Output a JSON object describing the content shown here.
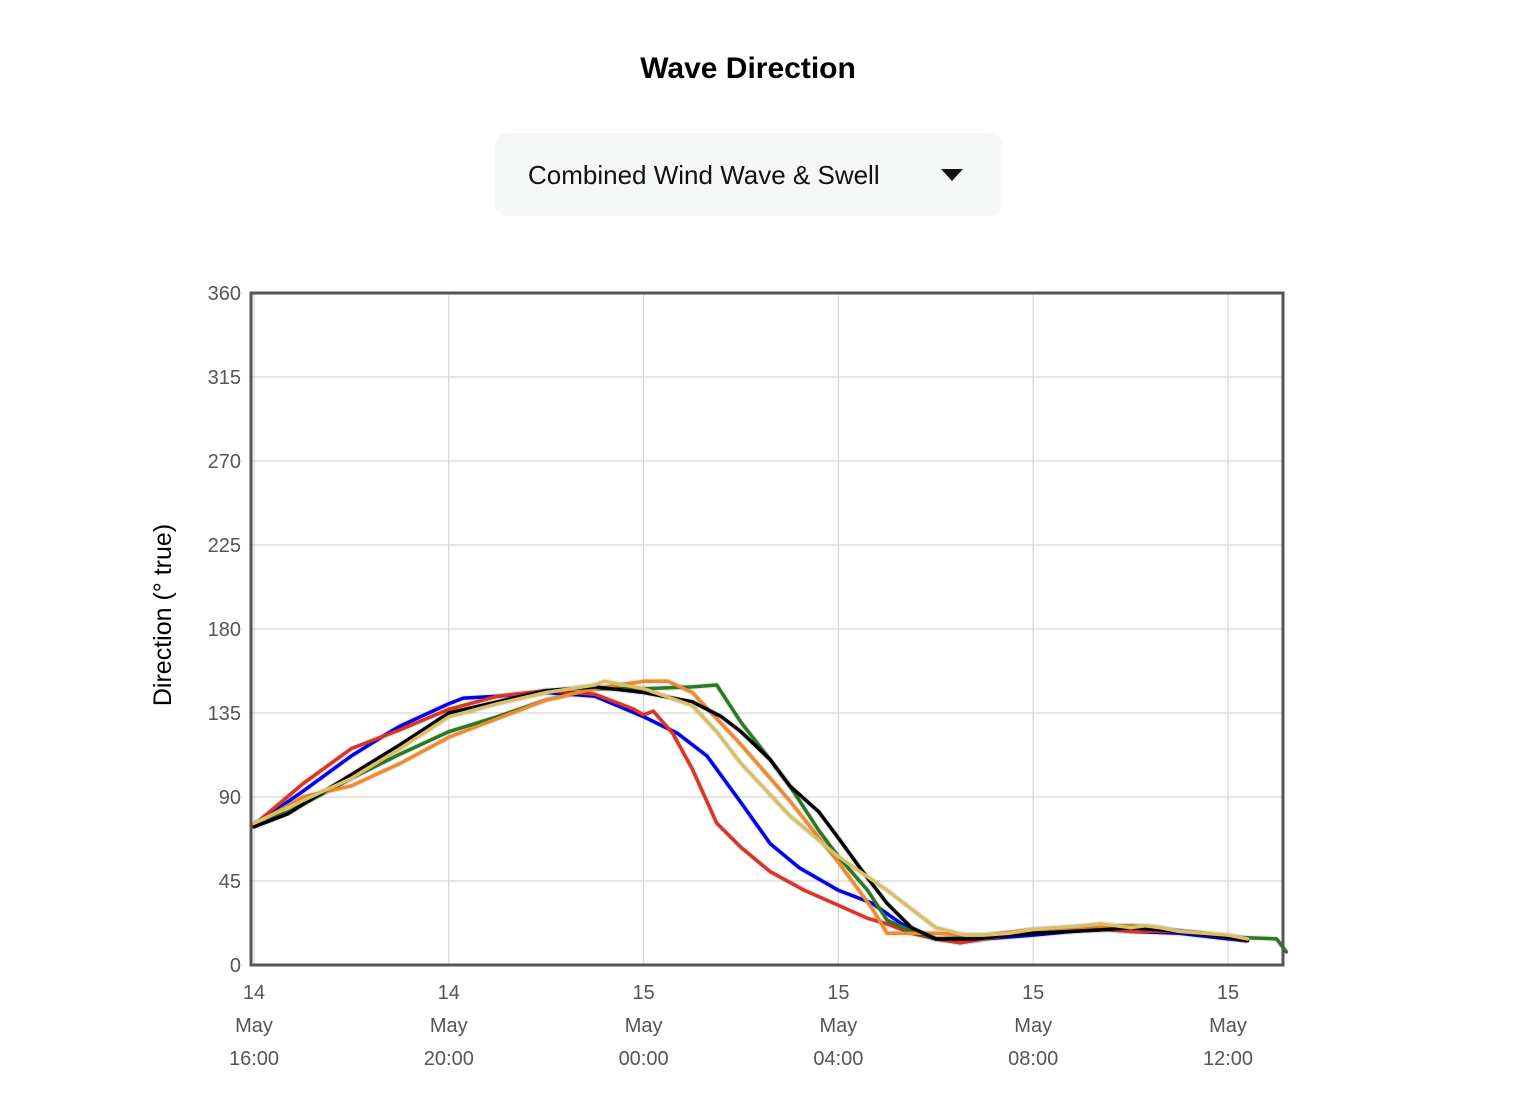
{
  "title": "Wave Direction",
  "selector": {
    "selected": "Combined Wind Wave & Swell"
  },
  "chart_data": {
    "type": "line",
    "ylabel": "Direction (° true)",
    "xlabel": "",
    "ylim": [
      0,
      360
    ],
    "yticks": [
      0,
      45,
      90,
      135,
      180,
      225,
      270,
      315,
      360
    ],
    "xlim": [
      0,
      21.2
    ],
    "xticks": [
      {
        "x": 0,
        "lines": [
          "14",
          "May",
          "16:00"
        ]
      },
      {
        "x": 4,
        "lines": [
          "14",
          "May",
          "20:00"
        ]
      },
      {
        "x": 8,
        "lines": [
          "15",
          "May",
          "00:00"
        ]
      },
      {
        "x": 12,
        "lines": [
          "15",
          "May",
          "04:00"
        ]
      },
      {
        "x": 16,
        "lines": [
          "15",
          "May",
          "08:00"
        ]
      },
      {
        "x": 20,
        "lines": [
          "15",
          "May",
          "12:00"
        ]
      }
    ],
    "x_unit_note": "hours after 14 May 16:00",
    "grid": true,
    "series": [
      {
        "color": "#0000ee",
        "points": [
          [
            0,
            75
          ],
          [
            1,
            93
          ],
          [
            2,
            112
          ],
          [
            2.8,
            125
          ],
          [
            3,
            128
          ],
          [
            4,
            140
          ],
          [
            4.3,
            143
          ],
          [
            5,
            144
          ],
          [
            6,
            146
          ],
          [
            7,
            144
          ],
          [
            8,
            133
          ],
          [
            8.7,
            124
          ],
          [
            9.3,
            112
          ],
          [
            10,
            87
          ],
          [
            10.6,
            65
          ],
          [
            11.2,
            52
          ],
          [
            12,
            40
          ],
          [
            12.7,
            33
          ],
          [
            13.3,
            22
          ],
          [
            14,
            14
          ],
          [
            14.5,
            12
          ],
          [
            15,
            14
          ],
          [
            16,
            16
          ],
          [
            16.8,
            18
          ],
          [
            17.5,
            19
          ],
          [
            18,
            18
          ],
          [
            19,
            17
          ],
          [
            20,
            14
          ],
          [
            20.4,
            13
          ]
        ]
      },
      {
        "color": "#dd3322",
        "points": [
          [
            0,
            75
          ],
          [
            1,
            97
          ],
          [
            2,
            116
          ],
          [
            3,
            126
          ],
          [
            4,
            137
          ],
          [
            5,
            144
          ],
          [
            6,
            147
          ],
          [
            7,
            145
          ],
          [
            7.8,
            137
          ],
          [
            8,
            134
          ],
          [
            8.2,
            136
          ],
          [
            8.6,
            124
          ],
          [
            9,
            105
          ],
          [
            9.5,
            76
          ],
          [
            10,
            63
          ],
          [
            10.6,
            50
          ],
          [
            11.3,
            40
          ],
          [
            12,
            32
          ],
          [
            12.6,
            25
          ],
          [
            13,
            22
          ],
          [
            13.5,
            17
          ],
          [
            14,
            14
          ],
          [
            14.5,
            12
          ],
          [
            15,
            14
          ],
          [
            16,
            18
          ],
          [
            16.8,
            19
          ],
          [
            17.5,
            19
          ],
          [
            18,
            18
          ],
          [
            19,
            18
          ],
          [
            19.5,
            17
          ],
          [
            20,
            15
          ],
          [
            20.4,
            13
          ]
        ]
      },
      {
        "color": "#2a7a23",
        "points": [
          [
            0,
            75
          ],
          [
            0.7,
            82
          ],
          [
            1,
            86
          ],
          [
            2,
            100
          ],
          [
            3,
            113
          ],
          [
            4,
            125
          ],
          [
            5,
            133
          ],
          [
            6,
            142
          ],
          [
            7,
            148
          ],
          [
            8,
            148
          ],
          [
            9,
            149
          ],
          [
            9.5,
            150
          ],
          [
            10,
            130
          ],
          [
            10.6,
            110
          ],
          [
            11,
            96
          ],
          [
            11.6,
            72
          ],
          [
            12,
            58
          ],
          [
            12.6,
            40
          ],
          [
            13,
            24
          ],
          [
            13.5,
            18
          ],
          [
            14,
            14
          ],
          [
            15,
            15
          ],
          [
            16,
            18
          ],
          [
            17,
            20
          ],
          [
            18,
            21
          ],
          [
            18.5,
            20
          ],
          [
            19,
            18
          ],
          [
            20,
            15
          ],
          [
            21,
            14
          ],
          [
            21.2,
            7
          ]
        ]
      },
      {
        "color": "#f08a2e",
        "points": [
          [
            0,
            75
          ],
          [
            1,
            90
          ],
          [
            2,
            96
          ],
          [
            3,
            108
          ],
          [
            4,
            122
          ],
          [
            5,
            132
          ],
          [
            6,
            142
          ],
          [
            7,
            148
          ],
          [
            8,
            152
          ],
          [
            8.5,
            152
          ],
          [
            9,
            146
          ],
          [
            10,
            118
          ],
          [
            11,
            88
          ],
          [
            12,
            55
          ],
          [
            12.7,
            30
          ],
          [
            13,
            17
          ],
          [
            14,
            17
          ],
          [
            14.6,
            16
          ],
          [
            15,
            16
          ],
          [
            16,
            19
          ],
          [
            17,
            20
          ],
          [
            18,
            21
          ],
          [
            18.5,
            20
          ],
          [
            19,
            18
          ],
          [
            20,
            15
          ],
          [
            20.4,
            13
          ]
        ]
      },
      {
        "color": "#000000",
        "points": [
          [
            0,
            74
          ],
          [
            0.7,
            81
          ],
          [
            1,
            86
          ],
          [
            2,
            102
          ],
          [
            3,
            118
          ],
          [
            4,
            135
          ],
          [
            5,
            141
          ],
          [
            6,
            147
          ],
          [
            7,
            149
          ],
          [
            8,
            146
          ],
          [
            9,
            141
          ],
          [
            9.6,
            133
          ],
          [
            10,
            125
          ],
          [
            10.6,
            110
          ],
          [
            11,
            96
          ],
          [
            11.6,
            82
          ],
          [
            12,
            68
          ],
          [
            12.5,
            50
          ],
          [
            13,
            33
          ],
          [
            13.5,
            20
          ],
          [
            14,
            14
          ],
          [
            14.8,
            14
          ],
          [
            15.5,
            16
          ],
          [
            16,
            17
          ],
          [
            16.8,
            18
          ],
          [
            17.5,
            19
          ],
          [
            18,
            20
          ],
          [
            18.5,
            19
          ],
          [
            19,
            18
          ],
          [
            20,
            15
          ],
          [
            20.4,
            13
          ]
        ]
      },
      {
        "color": "#d9c066",
        "points": [
          [
            0,
            76
          ],
          [
            1,
            88
          ],
          [
            2,
            100
          ],
          [
            3,
            116
          ],
          [
            4,
            133
          ],
          [
            5,
            140
          ],
          [
            6,
            146
          ],
          [
            7,
            150
          ],
          [
            7.2,
            152
          ],
          [
            8,
            148
          ],
          [
            9,
            139
          ],
          [
            9.5,
            125
          ],
          [
            10,
            108
          ],
          [
            11,
            80
          ],
          [
            12,
            58
          ],
          [
            13,
            40
          ],
          [
            14,
            20
          ],
          [
            14.6,
            16
          ],
          [
            15,
            16
          ],
          [
            15.5,
            17
          ],
          [
            16,
            19
          ],
          [
            17,
            21
          ],
          [
            17.4,
            22
          ],
          [
            17.7,
            21
          ],
          [
            18,
            20
          ],
          [
            18.3,
            21
          ],
          [
            18.6,
            20
          ],
          [
            19,
            18
          ],
          [
            19.5,
            17
          ],
          [
            20,
            16
          ],
          [
            20.4,
            14
          ]
        ]
      }
    ]
  }
}
